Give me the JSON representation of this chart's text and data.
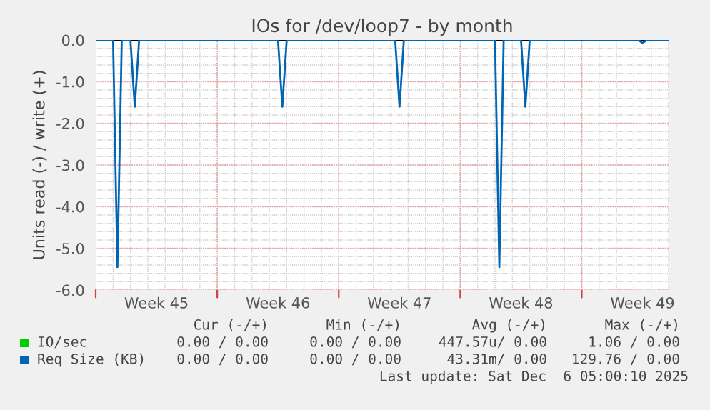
{
  "chart_data": {
    "type": "line",
    "title": "IOs for /dev/loop7 - by month",
    "ylabel": "Units read (-) / write (+)",
    "categories": [
      null,
      null,
      null,
      null,
      null,
      null,
      null,
      null,
      null,
      null,
      null,
      null,
      null,
      null,
      "Week 45",
      null,
      null,
      null,
      null,
      null,
      null,
      null,
      null,
      null,
      null,
      null,
      null,
      null,
      null,
      null,
      null,
      null,
      null,
      null,
      null,
      null,
      null,
      null,
      null,
      null,
      null,
      null,
      "Week 46",
      null,
      null,
      null,
      null,
      null,
      null,
      null,
      null,
      null,
      null,
      null,
      null,
      null,
      null,
      null,
      null,
      null,
      null,
      null,
      null,
      null,
      null,
      null,
      null,
      null,
      null,
      null,
      "Week 47",
      null,
      null,
      null,
      null,
      null,
      null,
      null,
      null,
      null,
      null,
      null,
      null,
      null,
      null,
      null,
      null,
      null,
      null,
      null,
      null,
      null,
      null,
      null,
      null,
      null,
      null,
      null,
      "Week 48",
      null,
      null,
      null,
      null,
      null,
      null,
      null,
      null,
      null,
      null,
      null,
      null,
      null,
      null,
      null,
      null,
      null,
      null,
      null,
      null,
      null,
      null,
      null,
      null,
      null,
      null,
      null,
      "Week 49",
      null,
      null,
      null,
      null,
      null,
      null
    ],
    "ylim": [
      -6.0,
      0.0
    ],
    "yticks": [
      {
        "value": -6,
        "label": "-6.0"
      },
      {
        "value": -5,
        "label": "-5.0"
      },
      {
        "value": -4,
        "label": "-4.0"
      },
      {
        "value": -3,
        "label": "-3.0"
      },
      {
        "value": -2,
        "label": "-2.0"
      },
      {
        "value": -1,
        "label": "-1.0"
      },
      {
        "value": 0,
        "label": "0.0"
      }
    ],
    "grid": true,
    "legend": "bottom left",
    "ref_lines": [
      {
        "axis": "y",
        "value": 0,
        "color": "#000000"
      }
    ],
    "series": [
      {
        "name": "IO/sec",
        "color": "#00cc00",
        "values": [
          null,
          null,
          null,
          null,
          null,
          null,
          null,
          null,
          null,
          null,
          null,
          null,
          null,
          null,
          null,
          null,
          null,
          null,
          null,
          null,
          null,
          null,
          null,
          null,
          null,
          null,
          null,
          null,
          null,
          null,
          null,
          null,
          null,
          null,
          null,
          null,
          null,
          null,
          null,
          null,
          null,
          null,
          null,
          null,
          null,
          null,
          null,
          null,
          null,
          null,
          null,
          null,
          null,
          null,
          null,
          null,
          null,
          null,
          null,
          null,
          null,
          null,
          null,
          null,
          null,
          null,
          null,
          null,
          null,
          null,
          null,
          null,
          null,
          null,
          null,
          null,
          null,
          null,
          null,
          null,
          null,
          null,
          null,
          null,
          null,
          null,
          null,
          null,
          null,
          null,
          null,
          null,
          null,
          null,
          null,
          null,
          null,
          null,
          null,
          null,
          null,
          null,
          null,
          null,
          null,
          null,
          null,
          null,
          null,
          null,
          null,
          null,
          null,
          null,
          null,
          null,
          null,
          null,
          null,
          null,
          null,
          null,
          null,
          null,
          null,
          null,
          null,
          null,
          null,
          null,
          null,
          null,
          null
        ]
      },
      {
        "name": "Req Size (KB)",
        "color": "#0066b3",
        "values": [
          0,
          0,
          0,
          0,
          0,
          -5.45,
          0,
          0,
          0,
          -1.6,
          0,
          0,
          0,
          0,
          0,
          0,
          0,
          0,
          0,
          0,
          0,
          0,
          0,
          0,
          0,
          0,
          0,
          0,
          0,
          0,
          0,
          0,
          0,
          0,
          0,
          0,
          0,
          0,
          0,
          0,
          0,
          0,
          0,
          -1.6,
          0,
          0,
          0,
          0,
          0,
          0,
          0,
          0,
          0,
          0,
          0,
          0,
          0,
          0,
          0,
          0,
          0,
          0,
          0,
          0,
          0,
          0,
          0,
          0,
          0,
          0,
          -1.6,
          0,
          0,
          0,
          0,
          0,
          0,
          0,
          0,
          0,
          0,
          0,
          0,
          0,
          0,
          0,
          0,
          0,
          0,
          0,
          0,
          0,
          0,
          -5.45,
          0,
          0,
          0,
          0,
          0,
          -1.6,
          0,
          0,
          0,
          0,
          0,
          0,
          0,
          0,
          0,
          0,
          0,
          0,
          0,
          0,
          0,
          0,
          0,
          0,
          0,
          0,
          0,
          0,
          0,
          0,
          0,
          0,
          -0.07,
          0,
          0,
          0,
          0,
          0,
          0
        ]
      }
    ],
    "annotations": [
      "Cur (-/+)",
      "Min (-/+)",
      "Avg (-/+)",
      "Max (-/+)",
      "0.00 / 0.00",
      "0.00 / 0.00",
      "447.57u/ 0.00",
      "1.06 / 0.00",
      "0.00 / 0.00",
      "0.00 / 0.00",
      "43.31m/ 0.00",
      "129.76 / 0.00",
      "Last update: Sat Dec  6 05:00:10 2025"
    ]
  }
}
